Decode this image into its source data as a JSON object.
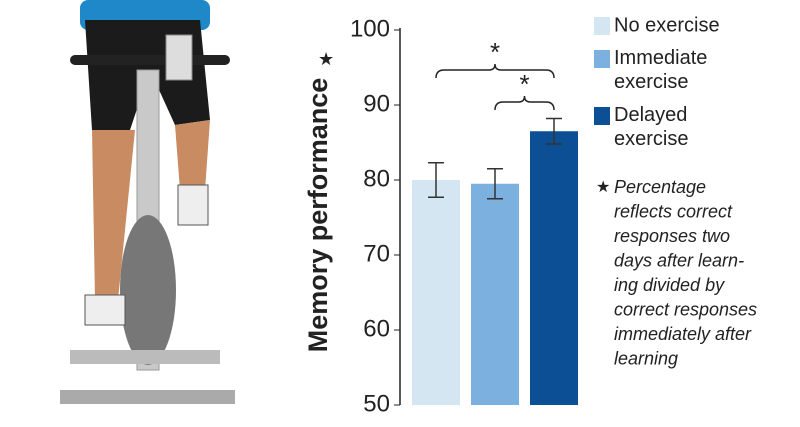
{
  "chart_data": {
    "type": "bar",
    "ylabel": "Memory performance",
    "footnote_marker": "★",
    "series": [
      {
        "name": "No exercise",
        "color": "#d5e6f3",
        "values": [
          80
        ],
        "errors": [
          2.3
        ]
      },
      {
        "name": "Immediate exercise",
        "color": "#7bb0df",
        "values": [
          79.5
        ],
        "errors": [
          2
        ]
      },
      {
        "name": "Delayed exercise",
        "color": "#0d4f94",
        "values": [
          86.5
        ],
        "errors": [
          1.7
        ]
      }
    ],
    "ylim": [
      50,
      100
    ],
    "yticks": [
      50,
      60,
      70,
      80,
      90,
      100
    ],
    "significance": [
      {
        "label": "*",
        "between": [
          0,
          2
        ]
      },
      {
        "label": "*",
        "between": [
          1,
          2
        ]
      }
    ],
    "note": [
      "Percentage",
      "reflects correct",
      "responses two",
      "days after learn-",
      "ing divided by",
      "correct responses",
      "immediately after",
      "learning"
    ]
  }
}
